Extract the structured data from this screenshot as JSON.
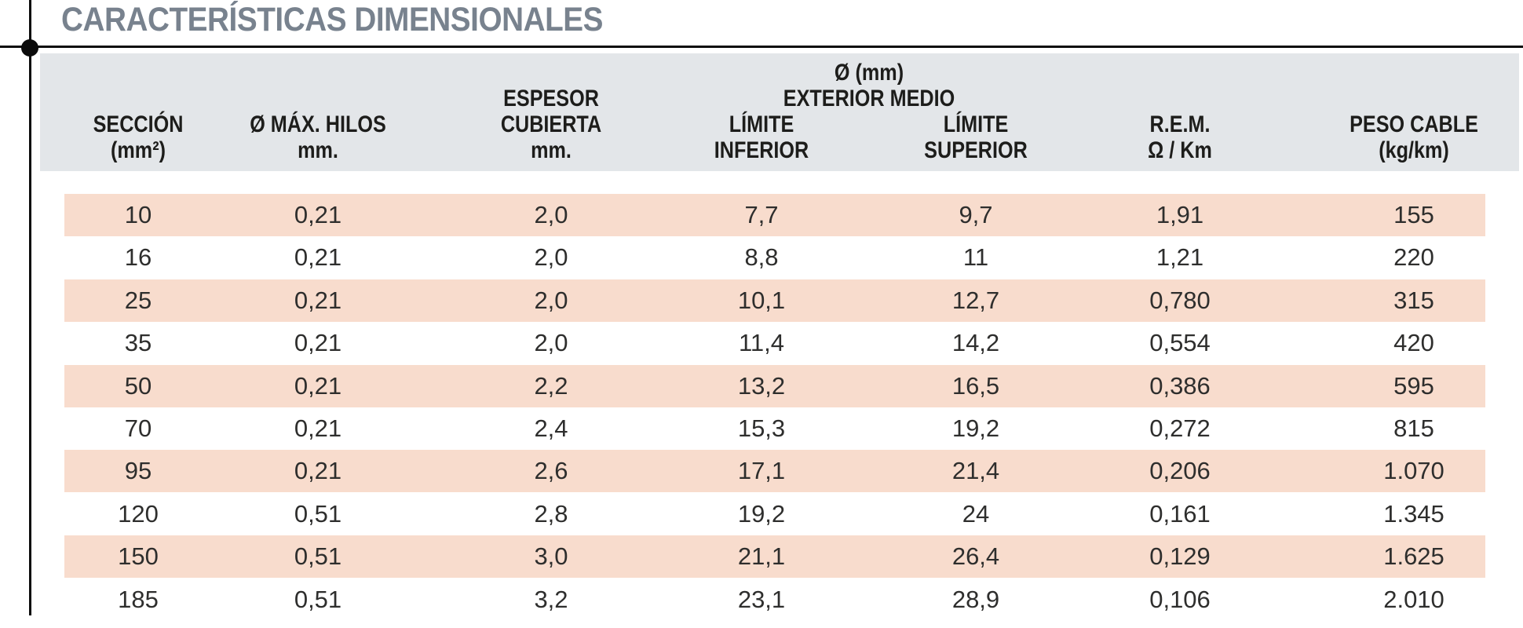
{
  "title": "CARACTERÍSTICAS DIMENSIONALES",
  "colors": {
    "title": "#78828e",
    "header_band": "#e3e6e9",
    "row_highlight": "#f8dccd",
    "header_text": "#1d1d1b",
    "data_text": "#2e2e2d",
    "rule": "#0b0b0b"
  },
  "table": {
    "diameter_group": {
      "line1": "Ø (mm)",
      "line2": "EXTERIOR MEDIO"
    },
    "columns": [
      {
        "id": "seccion",
        "lines": [
          "SECCIÓN",
          "(mm²)"
        ]
      },
      {
        "id": "max-hilos",
        "lines": [
          "Ø MÁX. HILOS",
          "mm."
        ]
      },
      {
        "id": "espesor-cubierta",
        "lines": [
          "ESPESOR",
          "CUBIERTA",
          "mm."
        ]
      },
      {
        "id": "limite-inferior",
        "lines": [
          "LÍMITE",
          "INFERIOR"
        ]
      },
      {
        "id": "limite-superior",
        "lines": [
          "LÍMITE",
          "SUPERIOR"
        ]
      },
      {
        "id": "rem",
        "lines": [
          "R.E.M.",
          "Ω / Km"
        ]
      },
      {
        "id": "peso-cable",
        "lines": [
          "PESO CABLE",
          "(kg/km)"
        ]
      }
    ],
    "rows": [
      [
        "10",
        "0,21",
        "2,0",
        "7,7",
        "9,7",
        "1,91",
        "155"
      ],
      [
        "16",
        "0,21",
        "2,0",
        "8,8",
        "11",
        "1,21",
        "220"
      ],
      [
        "25",
        "0,21",
        "2,0",
        "10,1",
        "12,7",
        "0,780",
        "315"
      ],
      [
        "35",
        "0,21",
        "2,0",
        "11,4",
        "14,2",
        "0,554",
        "420"
      ],
      [
        "50",
        "0,21",
        "2,2",
        "13,2",
        "16,5",
        "0,386",
        "595"
      ],
      [
        "70",
        "0,21",
        "2,4",
        "15,3",
        "19,2",
        "0,272",
        "815"
      ],
      [
        "95",
        "0,21",
        "2,6",
        "17,1",
        "21,4",
        "0,206",
        "1.070"
      ],
      [
        "120",
        "0,51",
        "2,8",
        "19,2",
        "24",
        "0,161",
        "1.345"
      ],
      [
        "150",
        "0,51",
        "3,0",
        "21,1",
        "26,4",
        "0,129",
        "1.625"
      ],
      [
        "185",
        "0,51",
        "3,2",
        "23,1",
        "28,9",
        "0,106",
        "2.010"
      ]
    ]
  }
}
